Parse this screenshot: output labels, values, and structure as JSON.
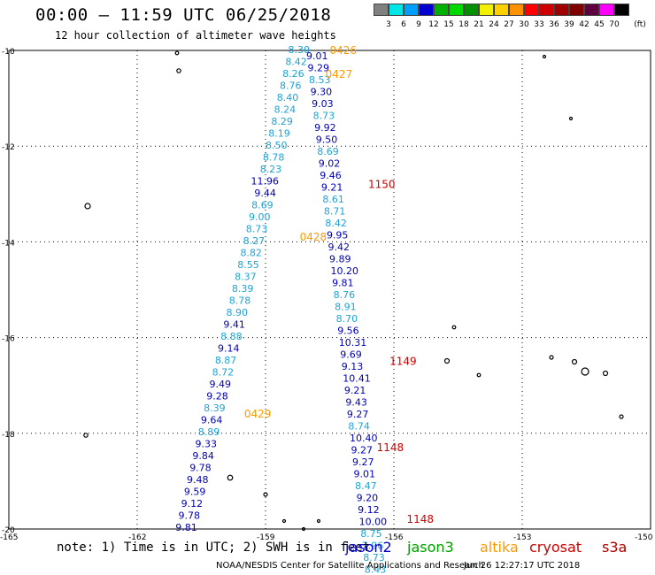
{
  "header": {
    "title": "00:00 – 11:59 UTC 06/25/2018",
    "subtitle": "12 hour collection of altimeter wave heights"
  },
  "colorbar": {
    "unit_label": "(ft)",
    "colors": [
      "#808080",
      "#00e5e5",
      "#009fff",
      "#0000d0",
      "#00b000",
      "#00d800",
      "#009000",
      "#f0f000",
      "#ffd000",
      "#ff9000",
      "#ff0000",
      "#d00000",
      "#a00000",
      "#800000",
      "#600040",
      "#ff00ff",
      "#000000"
    ],
    "labels": [
      "3",
      "6",
      "9",
      "12",
      "15",
      "18",
      "21",
      "24",
      "27",
      "30",
      "33",
      "36",
      "39",
      "42",
      "45",
      "70"
    ]
  },
  "footer": {
    "note": "note: 1) Time is in UTC; 2) SWH is in feet",
    "credit": "NOAA/NESDIS Center for Satellite Applications and Research",
    "timestamp": "Jun 26 12:27:17 UTC 2018"
  },
  "legend": [
    {
      "name": "jason2",
      "color": "#0000cc"
    },
    {
      "name": "jason3",
      "color": "#00a000"
    },
    {
      "name": "altika",
      "color": "#ff9900"
    },
    {
      "name": "cryosat",
      "color": "#cc0000"
    },
    {
      "name": "s3a",
      "color": "#b00000"
    }
  ],
  "chart_data": {
    "type": "scatter",
    "title": "00:00 – 11:59 UTC 06/25/2018",
    "subtitle": "12 hour collection of altimeter wave heights",
    "xlim": [
      -165,
      -150
    ],
    "ylim": [
      -20,
      -10
    ],
    "x_ticks": [
      "-165",
      "-162",
      "-159",
      "-156",
      "-153",
      "-150"
    ],
    "y_ticks": [
      "-10",
      "-12",
      "-14",
      "-16",
      "-18",
      "-20"
    ],
    "grid": true,
    "colors": {
      "light": "#1ca3d6",
      "dark": "#0000b4",
      "altika": "#ff9900",
      "cryosat": "#cc0000"
    },
    "points_left": [
      {
        "v": "8.30",
        "c": "light"
      },
      {
        "v": "8.42",
        "c": "light"
      },
      {
        "v": "8.26",
        "c": "light"
      },
      {
        "v": "8.76",
        "c": "light"
      },
      {
        "v": "8.40",
        "c": "light"
      },
      {
        "v": "8.24",
        "c": "light"
      },
      {
        "v": "8.29",
        "c": "light"
      },
      {
        "v": "8.19",
        "c": "light"
      },
      {
        "v": "8.50",
        "c": "light"
      },
      {
        "v": "8.78",
        "c": "light"
      },
      {
        "v": "8.23",
        "c": "light"
      },
      {
        "v": "11.96",
        "c": "dark"
      },
      {
        "v": "9.44",
        "c": "dark"
      },
      {
        "v": "8.69",
        "c": "light"
      },
      {
        "v": "9.00",
        "c": "light"
      },
      {
        "v": "8.73",
        "c": "light"
      },
      {
        "v": "8.27",
        "c": "light"
      },
      {
        "v": "8.82",
        "c": "light"
      },
      {
        "v": "8.55",
        "c": "light"
      },
      {
        "v": "8.37",
        "c": "light"
      },
      {
        "v": "8.39",
        "c": "light"
      },
      {
        "v": "8.78",
        "c": "light"
      },
      {
        "v": "8.90",
        "c": "light"
      },
      {
        "v": "9.41",
        "c": "dark"
      },
      {
        "v": "8.88",
        "c": "light"
      },
      {
        "v": "9.14",
        "c": "dark"
      },
      {
        "v": "8.87",
        "c": "light"
      },
      {
        "v": "8.72",
        "c": "light"
      },
      {
        "v": "9.49",
        "c": "dark"
      },
      {
        "v": "9.28",
        "c": "dark"
      },
      {
        "v": "8.39",
        "c": "light"
      },
      {
        "v": "9.64",
        "c": "dark"
      },
      {
        "v": "8.89",
        "c": "light"
      },
      {
        "v": "9.33",
        "c": "dark"
      },
      {
        "v": "9.84",
        "c": "dark"
      },
      {
        "v": "9.78",
        "c": "dark"
      },
      {
        "v": "9.48",
        "c": "dark"
      },
      {
        "v": "9.59",
        "c": "dark"
      },
      {
        "v": "9.12",
        "c": "dark"
      },
      {
        "v": "9.78",
        "c": "dark"
      },
      {
        "v": "9.81",
        "c": "dark"
      }
    ],
    "points_right": [
      {
        "v": "9.01",
        "c": "dark"
      },
      {
        "v": "9.29",
        "c": "dark"
      },
      {
        "v": "8.53",
        "c": "light"
      },
      {
        "v": "9.30",
        "c": "dark"
      },
      {
        "v": "9.03",
        "c": "dark"
      },
      {
        "v": "8.73",
        "c": "light"
      },
      {
        "v": "9.92",
        "c": "dark"
      },
      {
        "v": "9.50",
        "c": "dark"
      },
      {
        "v": "8.69",
        "c": "light"
      },
      {
        "v": "9.02",
        "c": "dark"
      },
      {
        "v": "9.46",
        "c": "dark"
      },
      {
        "v": "9.21",
        "c": "dark"
      },
      {
        "v": "8.61",
        "c": "light"
      },
      {
        "v": "8.71",
        "c": "light"
      },
      {
        "v": "8.42",
        "c": "light"
      },
      {
        "v": "9.95",
        "c": "dark"
      },
      {
        "v": "9.42",
        "c": "dark"
      },
      {
        "v": "9.89",
        "c": "dark"
      },
      {
        "v": "10.20",
        "c": "dark"
      },
      {
        "v": "9.81",
        "c": "dark"
      },
      {
        "v": "8.76",
        "c": "light"
      },
      {
        "v": "8.91",
        "c": "light"
      },
      {
        "v": "8.70",
        "c": "light"
      },
      {
        "v": "9.56",
        "c": "dark"
      },
      {
        "v": "10.31",
        "c": "dark"
      },
      {
        "v": "9.69",
        "c": "dark"
      },
      {
        "v": "9.13",
        "c": "dark"
      },
      {
        "v": "10.41",
        "c": "dark"
      },
      {
        "v": "9.21",
        "c": "dark"
      },
      {
        "v": "9.43",
        "c": "dark"
      },
      {
        "v": "9.27",
        "c": "dark"
      },
      {
        "v": "8.74",
        "c": "light"
      },
      {
        "v": "10.40",
        "c": "dark"
      },
      {
        "v": "9.27",
        "c": "dark"
      },
      {
        "v": "9.27",
        "c": "dark"
      },
      {
        "v": "9.01",
        "c": "dark"
      },
      {
        "v": "8.47",
        "c": "light"
      },
      {
        "v": "9.20",
        "c": "dark"
      },
      {
        "v": "9.12",
        "c": "dark"
      },
      {
        "v": "10.00",
        "c": "dark"
      },
      {
        "v": "8.75",
        "c": "light"
      },
      {
        "v": "7.96",
        "c": "light"
      },
      {
        "v": "8.73",
        "c": "light"
      },
      {
        "v": "8.43",
        "c": "light"
      }
    ],
    "time_labels": [
      {
        "text": "0426",
        "c": "altika",
        "lon": -157.5,
        "lat": -10.0
      },
      {
        "text": "0427",
        "c": "altika",
        "lon": -157.6,
        "lat": -10.5
      },
      {
        "text": "1150",
        "c": "cryosat",
        "lon": -156.6,
        "lat": -12.8
      },
      {
        "text": "0428",
        "c": "altika",
        "lon": -158.2,
        "lat": -13.9
      },
      {
        "text": "1149",
        "c": "cryosat",
        "lon": -156.1,
        "lat": -16.5
      },
      {
        "text": "0429",
        "c": "altika",
        "lon": -159.5,
        "lat": -17.6
      },
      {
        "text": "1148",
        "c": "cryosat",
        "lon": -156.4,
        "lat": -18.3
      },
      {
        "text": "1148",
        "c": "cryosat",
        "lon": -155.7,
        "lat": -19.8
      }
    ]
  }
}
